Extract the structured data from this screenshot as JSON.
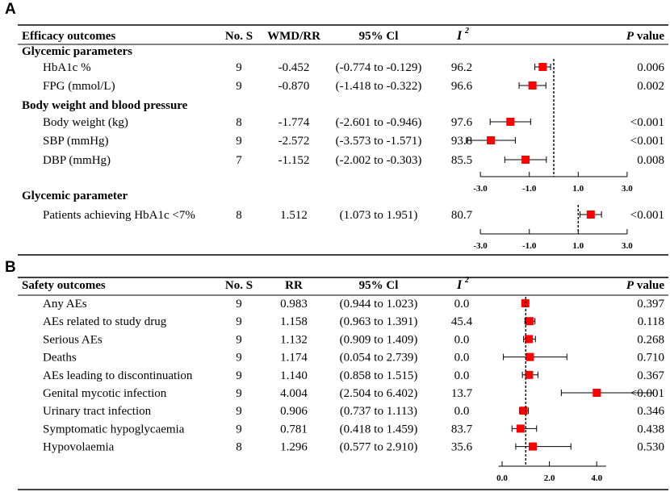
{
  "chart_data": [
    {
      "type": "forest",
      "panel_label": "A",
      "columns": {
        "outcome": "Efficacy outcomes",
        "n": "No. S",
        "effect": "WMD/RR",
        "ci": "95% Cl",
        "i2_main": "I",
        "i2_sup": "2",
        "p_bold": "P",
        "p_rest": " value"
      },
      "groups": [
        {
          "heading": "Glycemic parameters",
          "rows": [
            {
              "label": "HbA1c %",
              "n": "9",
              "effect": "-0.452",
              "ci": "(-0.774 to -0.129)",
              "i2": "96.2",
              "p": "0.006",
              "est": -0.452,
              "lo": -0.774,
              "hi": -0.129
            },
            {
              "label": "FPG (mmol/L)",
              "n": "9",
              "effect": "-0.870",
              "ci": "(-1.418 to -0.322)",
              "i2": "96.6",
              "p": "0.002",
              "est": -0.87,
              "lo": -1.418,
              "hi": -0.322
            }
          ]
        },
        {
          "heading": "Body weight and blood pressure",
          "rows": [
            {
              "label": "Body weight (kg)",
              "n": "8",
              "effect": "-1.774",
              "ci": "(-2.601 to -0.946)",
              "i2": "97.6",
              "p": "<0.001",
              "est": -1.774,
              "lo": -2.601,
              "hi": -0.946
            },
            {
              "label": "SBP (mmHg)",
              "n": "9",
              "effect": "-2.572",
              "ci": "(-3.573 to -1.571)",
              "i2": "93.8",
              "p": "<0.001",
              "est": -2.572,
              "lo": -3.573,
              "hi": -1.571
            },
            {
              "label": "DBP (mmHg)",
              "n": "7",
              "effect": "-1.152",
              "ci": "(-2.002 to -0.303)",
              "i2": "85.5",
              "p": "0.008",
              "est": -1.152,
              "lo": -2.002,
              "hi": -0.303
            }
          ]
        }
      ],
      "axis1": {
        "ticks": [
          -3.0,
          -1.0,
          1.0,
          3.0
        ],
        "tick_labels": [
          "-3.0",
          "-1.0",
          "1.0",
          "3.0"
        ],
        "range": [
          -3.0,
          3.0
        ],
        "ref": 0
      },
      "group3": {
        "heading": "Glycemic parameter",
        "rows": [
          {
            "label": "Patients achieving HbA1c <7%",
            "n": "8",
            "effect": "1.512",
            "ci": "(1.073 to 1.951)",
            "i2": "80.7",
            "p": "<0.001",
            "est": 1.512,
            "lo": 1.073,
            "hi": 1.951
          }
        ]
      },
      "axis2": {
        "ticks": [
          -3.0,
          -1.0,
          1.0,
          3.0
        ],
        "tick_labels": [
          "-3.0",
          "-1.0",
          "1.0",
          "3.0"
        ],
        "range": [
          -3.0,
          3.0
        ],
        "ref": 1
      }
    },
    {
      "type": "forest",
      "panel_label": "B",
      "columns": {
        "outcome": "Safety outcomes",
        "n": "No. S",
        "effect": "RR",
        "ci": "95% Cl",
        "i2_main": "I",
        "i2_sup": "2",
        "p_bold": "P",
        "p_rest": " value"
      },
      "rows": [
        {
          "label": "Any AEs",
          "n": "9",
          "effect": "0.983",
          "ci": "(0.944 to 1.023)",
          "i2": "0.0",
          "p": "0.397",
          "est": 0.983,
          "lo": 0.944,
          "hi": 1.023
        },
        {
          "label": "AEs related to study drug",
          "n": "9",
          "effect": "1.158",
          "ci": "(0.963 to 1.391)",
          "i2": "45.4",
          "p": "0.118",
          "est": 1.158,
          "lo": 0.963,
          "hi": 1.391
        },
        {
          "label": "Serious AEs",
          "n": "9",
          "effect": "1.132",
          "ci": "(0.909 to 1.409)",
          "i2": "0.0",
          "p": "0.268",
          "est": 1.132,
          "lo": 0.909,
          "hi": 1.409
        },
        {
          "label": "Deaths",
          "n": "9",
          "effect": "1.174",
          "ci": "(0.054 to 2.739)",
          "i2": "0.0",
          "p": "0.710",
          "est": 1.174,
          "lo": 0.054,
          "hi": 2.739
        },
        {
          "label": "AEs leading to discontinuation",
          "n": "9",
          "effect": "1.140",
          "ci": "(0.858 to 1.515)",
          "i2": "0.0",
          "p": "0.367",
          "est": 1.14,
          "lo": 0.858,
          "hi": 1.515
        },
        {
          "label": "Genital mycotic infection",
          "n": "9",
          "effect": "4.004",
          "ci": "(2.504 to 6.402)",
          "i2": "13.7",
          "p": "<0.001",
          "est": 4.004,
          "lo": 2.504,
          "hi": 6.402
        },
        {
          "label": "Urinary tract infection",
          "n": "9",
          "effect": "0.906",
          "ci": "(0.737 to 1.113)",
          "i2": "0.0",
          "p": "0.346",
          "est": 0.906,
          "lo": 0.737,
          "hi": 1.113
        },
        {
          "label": "Symptomatic hypoglycaemia",
          "n": "9",
          "effect": "0.781",
          "ci": "(0.418 to 1.459)",
          "i2": "83.7",
          "p": "0.438",
          "est": 0.781,
          "lo": 0.418,
          "hi": 1.459
        },
        {
          "label": "Hypovolaemia",
          "n": "8",
          "effect": "1.296",
          "ci": "(0.577 to 2.910)",
          "i2": "35.6",
          "p": "0.530",
          "est": 1.296,
          "lo": 0.577,
          "hi": 2.91
        }
      ],
      "axis": {
        "ticks": [
          0.0,
          2.0,
          4.0
        ],
        "tick_labels": [
          "0.0",
          "2.0",
          "4.0"
        ],
        "range": [
          -0.15,
          4.4
        ],
        "ref": 1
      }
    }
  ],
  "colors": {
    "marker": "#ff0000",
    "line": "#000000",
    "text": "#000000"
  }
}
